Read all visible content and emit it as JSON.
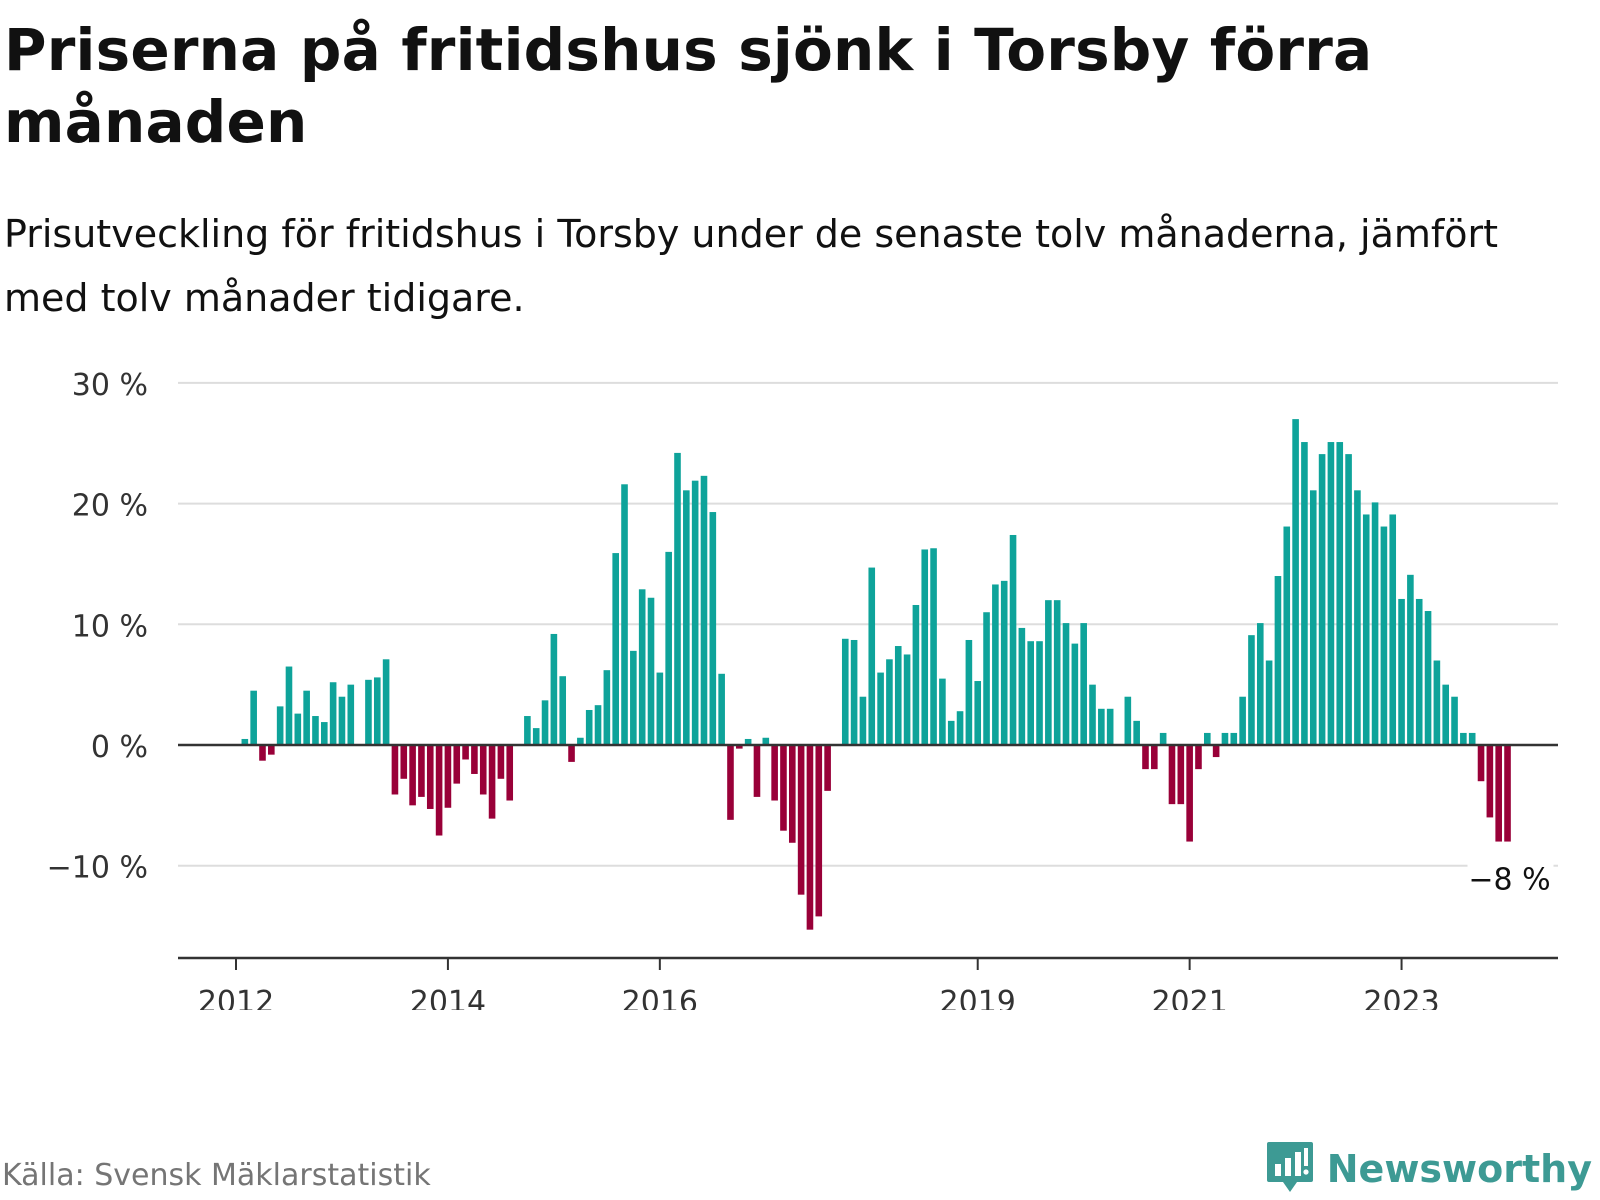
{
  "header": {
    "title": "Priserna på fritidshus sjönk i Torsby förra månaden",
    "subtitle": "Prisutveckling för fritidshus i Torsby under de senaste tolv månaderna, jämfört med tolv månader tidigare."
  },
  "footer": {
    "source": "Källa: Svensk Mäklarstatistik",
    "brand": "Newsworthy"
  },
  "colors": {
    "positive": "#0ea39a",
    "negative": "#990038",
    "grid": "#dddddd",
    "axis": "#333333",
    "brand": "#3d9a94"
  },
  "icons": {
    "brand_logo": "newsworthy-logo-icon"
  },
  "chart_data": {
    "type": "bar",
    "ylim": [
      -18,
      30
    ],
    "yticks": [
      30,
      20,
      10,
      0,
      -10
    ],
    "ytick_labels": [
      "30 %",
      "20 %",
      "10 %",
      "0 %",
      "−10 %"
    ],
    "xticks": [
      {
        "label": "2012",
        "index": 0
      },
      {
        "label": "2014",
        "index": 24
      },
      {
        "label": "2016",
        "index": 48
      },
      {
        "label": "2019",
        "index": 84
      },
      {
        "label": "2021",
        "index": 108
      },
      {
        "label": "2023",
        "index": 132
      }
    ],
    "last_label": "−8 %",
    "grid": true,
    "start": "2012-01",
    "values": [
      null,
      0.5,
      4.5,
      -1.3,
      -0.8,
      3.2,
      6.5,
      2.6,
      4.5,
      2.4,
      1.9,
      5.2,
      4.0,
      5.0,
      null,
      5.4,
      5.6,
      7.1,
      -4.1,
      -2.8,
      -5.0,
      -4.3,
      -5.3,
      -7.5,
      -5.2,
      -3.2,
      -1.2,
      -2.4,
      -4.1,
      -6.1,
      -2.8,
      -4.6,
      null,
      2.4,
      1.4,
      3.7,
      9.2,
      5.7,
      -1.4,
      0.6,
      2.9,
      3.3,
      6.2,
      15.9,
      21.6,
      7.8,
      12.9,
      12.2,
      6.0,
      16.0,
      24.2,
      21.1,
      21.9,
      22.3,
      19.3,
      5.9,
      -6.2,
      -0.3,
      0.5,
      -4.3,
      0.6,
      -4.6,
      -7.1,
      -8.1,
      -12.4,
      -15.3,
      -14.2,
      -3.8,
      null,
      8.8,
      8.7,
      4.0,
      14.7,
      6.0,
      7.1,
      8.2,
      7.5,
      11.6,
      16.2,
      16.3,
      5.5,
      2.0,
      2.8,
      8.7,
      5.3,
      11.0,
      13.3,
      13.6,
      17.4,
      9.7,
      8.6,
      8.6,
      12.0,
      12.0,
      10.1,
      8.4,
      10.1,
      5.0,
      3.0,
      3.0,
      null,
      4.0,
      2.0,
      -2.0,
      -2.0,
      1.0,
      -4.9,
      -4.9,
      -8.0,
      -2.0,
      1.0,
      -1.0,
      1.0,
      1.0,
      4.0,
      9.1,
      10.1,
      7.0,
      14.0,
      18.1,
      27.0,
      25.1,
      21.1,
      24.1,
      25.1,
      25.1,
      24.1,
      21.1,
      19.1,
      20.1,
      18.1,
      19.1,
      12.1,
      14.1,
      12.1,
      11.1,
      7.0,
      5.0,
      4.0,
      1.0,
      1.0,
      -3.0,
      -6.0,
      -8.0,
      -8.0
    ]
  }
}
